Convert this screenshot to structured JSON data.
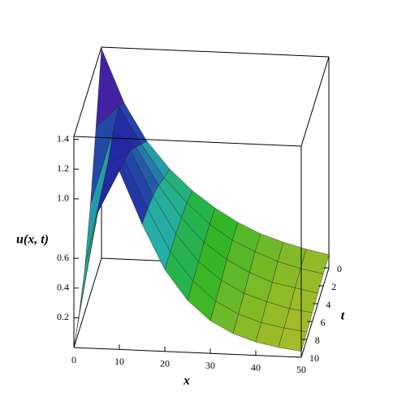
{
  "chart_data": {
    "type": "surface",
    "x": [
      0,
      5,
      10,
      15,
      20,
      25,
      30,
      35,
      40,
      45,
      50
    ],
    "t": [
      0,
      2,
      4,
      6,
      8,
      10
    ],
    "z": [
      [
        1.41,
        1.05,
        0.8,
        0.62,
        0.48,
        0.37,
        0.28,
        0.21,
        0.16,
        0.12,
        0.09
      ],
      [
        1.0,
        1.15,
        0.9,
        0.68,
        0.52,
        0.38,
        0.28,
        0.21,
        0.15,
        0.11,
        0.08
      ],
      [
        0.6,
        1.1,
        1.0,
        0.75,
        0.54,
        0.38,
        0.27,
        0.19,
        0.13,
        0.1,
        0.07
      ],
      [
        0.3,
        1.0,
        1.1,
        0.8,
        0.55,
        0.37,
        0.25,
        0.17,
        0.12,
        0.08,
        0.06
      ],
      [
        0.12,
        0.95,
        1.15,
        0.83,
        0.55,
        0.36,
        0.23,
        0.15,
        0.1,
        0.07,
        0.05
      ],
      [
        0,
        0.9,
        1.2,
        0.85,
        0.55,
        0.35,
        0.22,
        0.14,
        0.09,
        0.06,
        0.04
      ]
    ],
    "xlim": [
      0,
      50
    ],
    "tlim": [
      0,
      10
    ],
    "zlim": [
      0,
      1.42
    ],
    "xticks": [
      0,
      10,
      20,
      30,
      40,
      50
    ],
    "tticks": [
      0,
      2,
      4,
      6,
      8,
      10
    ],
    "zticks": [
      0.2,
      0.4,
      0.6,
      {
        "value": 1,
        "label": "1.0"
      },
      1.2,
      1.4
    ],
    "xlabel": "x",
    "tlabel": "t",
    "zlabel": "u(x, t)"
  }
}
